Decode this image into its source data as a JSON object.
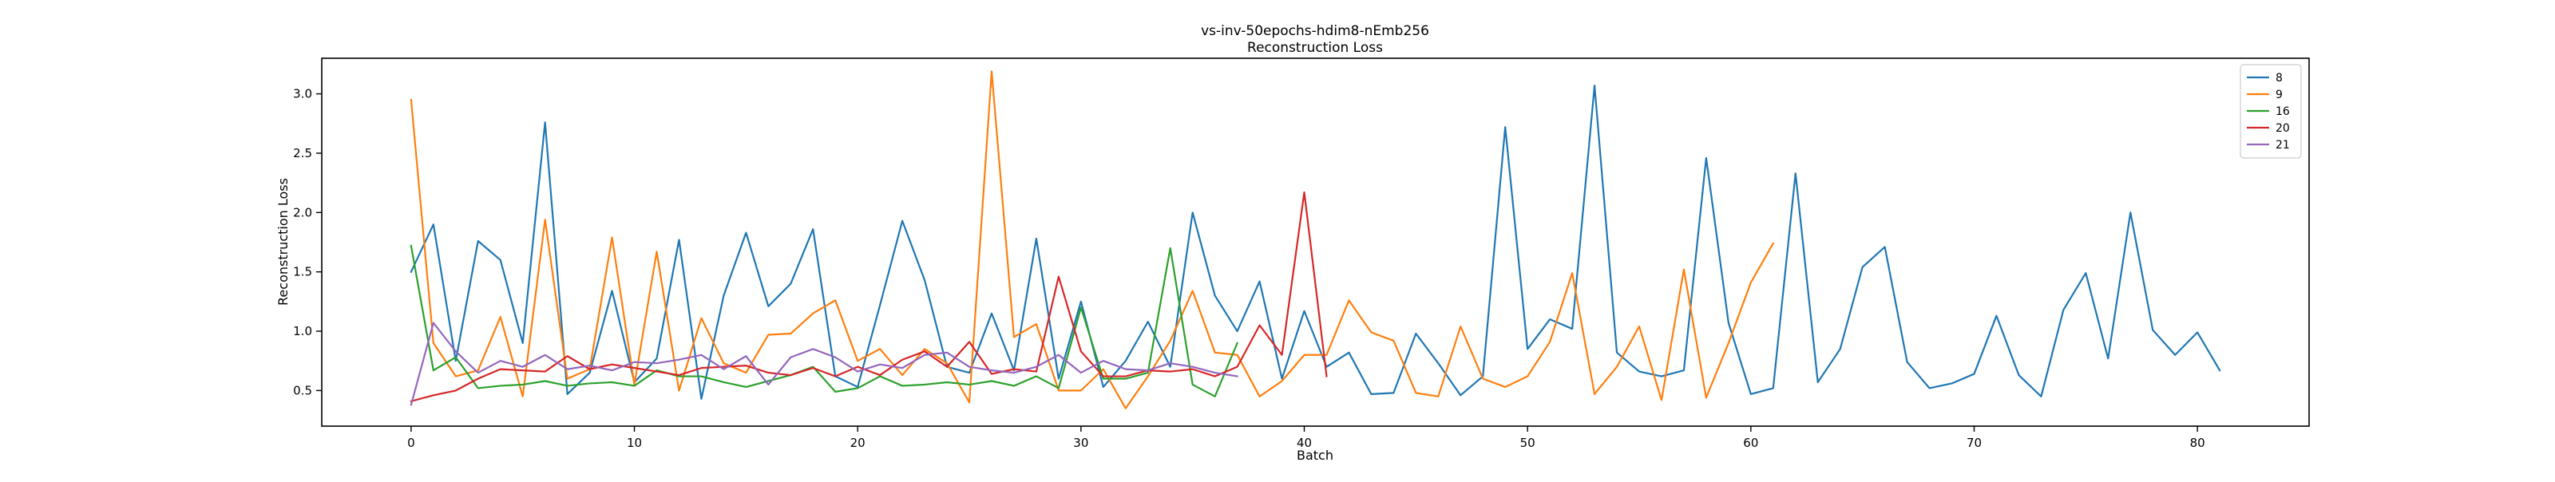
{
  "chart_data": {
    "type": "line",
    "title": "vs-inv-50epochs-hdim8-nEmb256",
    "subtitle": "Reconstruction Loss",
    "xlabel": "Batch",
    "ylabel": "Reconstruction Loss",
    "xlim": [
      -4,
      85
    ],
    "ylim": [
      0.2,
      3.3
    ],
    "xticks": [
      0,
      10,
      20,
      30,
      40,
      50,
      60,
      70,
      80
    ],
    "yticks": [
      0.5,
      1.0,
      1.5,
      2.0,
      2.5,
      3.0
    ],
    "ytick_labels": [
      "0.5",
      "1.0",
      "1.5",
      "2.0",
      "2.5",
      "3.0"
    ],
    "grid": false,
    "legend_position": "top-right",
    "series": [
      {
        "name": "8",
        "color": "#1f77b4",
        "x": [
          0,
          1,
          2,
          3,
          4,
          5,
          6,
          7,
          8,
          9,
          10,
          11,
          12,
          13,
          14,
          15,
          16,
          17,
          18,
          19,
          20,
          21,
          22,
          23,
          24,
          25,
          26,
          27,
          28,
          29,
          30,
          31,
          32,
          33,
          34,
          35,
          36,
          37,
          38,
          39,
          40,
          41,
          42,
          43,
          44,
          45,
          46,
          47,
          48,
          49,
          50,
          51,
          52,
          53,
          54,
          55,
          56,
          57,
          58,
          59,
          60,
          61,
          62,
          63,
          64,
          65,
          66,
          67,
          68,
          69,
          70,
          71,
          72,
          73,
          74,
          75,
          76,
          77,
          78,
          79,
          80,
          81
        ],
        "values": [
          1.5,
          1.9,
          0.75,
          1.76,
          1.6,
          0.9,
          2.76,
          0.47,
          0.65,
          1.34,
          0.57,
          0.77,
          1.77,
          0.43,
          1.3,
          1.83,
          1.21,
          1.4,
          1.86,
          0.62,
          0.53,
          1.22,
          1.93,
          1.43,
          0.7,
          0.65,
          1.15,
          0.67,
          1.78,
          0.6,
          1.25,
          0.53,
          0.75,
          1.08,
          0.7,
          2.0,
          1.3,
          1.0,
          1.42,
          0.6,
          1.17,
          0.7,
          0.82,
          0.47,
          0.48,
          0.98,
          0.73,
          0.46,
          0.62,
          2.72,
          0.85,
          1.1,
          1.02,
          3.07,
          0.82,
          0.66,
          0.62,
          0.67,
          2.46,
          1.07,
          0.47,
          0.52,
          2.33,
          0.57,
          0.85,
          1.54,
          1.71,
          0.74,
          0.52,
          0.56,
          0.64,
          1.13,
          0.63,
          0.45,
          1.18,
          1.49,
          0.77,
          2.0,
          1.01,
          0.8,
          0.99,
          0.67
        ]
      },
      {
        "name": "9",
        "color": "#ff7f0e",
        "x": [
          0,
          1,
          2,
          3,
          4,
          5,
          6,
          7,
          8,
          9,
          10,
          11,
          12,
          13,
          14,
          15,
          16,
          17,
          18,
          19,
          20,
          21,
          22,
          23,
          24,
          25,
          26,
          27,
          28,
          29,
          30,
          31,
          32,
          33,
          34,
          35,
          36,
          37,
          38,
          39,
          40,
          41,
          42,
          43,
          44,
          45,
          46,
          47,
          48,
          49,
          50,
          51,
          52,
          53,
          54,
          55,
          56,
          57,
          58,
          59,
          60,
          61
        ],
        "values": [
          2.95,
          0.9,
          0.62,
          0.67,
          1.12,
          0.45,
          1.94,
          0.6,
          0.68,
          1.79,
          0.55,
          1.67,
          0.5,
          1.11,
          0.73,
          0.65,
          0.97,
          0.98,
          1.15,
          1.26,
          0.75,
          0.85,
          0.63,
          0.85,
          0.73,
          0.4,
          3.19,
          0.95,
          1.06,
          0.5,
          0.5,
          0.68,
          0.35,
          0.62,
          0.92,
          1.34,
          0.82,
          0.8,
          0.45,
          0.58,
          0.8,
          0.8,
          1.26,
          0.99,
          0.92,
          0.48,
          0.45,
          1.04,
          0.6,
          0.53,
          0.62,
          0.91,
          1.49,
          0.47,
          0.7,
          1.04,
          0.42,
          1.52,
          0.44,
          0.9,
          1.41,
          1.74
        ]
      },
      {
        "name": "16",
        "color": "#2ca02c",
        "x": [
          0,
          1,
          2,
          3,
          4,
          5,
          6,
          7,
          8,
          9,
          10,
          11,
          12,
          13,
          14,
          15,
          16,
          17,
          18,
          19,
          20,
          21,
          22,
          23,
          24,
          25,
          26,
          27,
          28,
          29,
          30,
          31,
          32,
          33,
          34,
          35,
          36,
          37
        ],
        "values": [
          1.72,
          0.67,
          0.78,
          0.52,
          0.54,
          0.55,
          0.58,
          0.54,
          0.56,
          0.57,
          0.54,
          0.67,
          0.62,
          0.62,
          0.57,
          0.53,
          0.58,
          0.63,
          0.7,
          0.49,
          0.52,
          0.62,
          0.54,
          0.55,
          0.57,
          0.55,
          0.58,
          0.54,
          0.62,
          0.52,
          1.2,
          0.6,
          0.6,
          0.65,
          1.7,
          0.55,
          0.45,
          0.9
        ]
      },
      {
        "name": "20",
        "color": "#d62728",
        "x": [
          0,
          1,
          2,
          3,
          4,
          5,
          6,
          7,
          8,
          9,
          10,
          11,
          12,
          13,
          14,
          15,
          16,
          17,
          18,
          19,
          20,
          21,
          22,
          23,
          24,
          25,
          26,
          27,
          28,
          29,
          30,
          31,
          32,
          33,
          34,
          35,
          36,
          37,
          38,
          39,
          40,
          41
        ],
        "values": [
          0.41,
          0.46,
          0.5,
          0.6,
          0.68,
          0.67,
          0.66,
          0.79,
          0.68,
          0.72,
          0.69,
          0.66,
          0.63,
          0.69,
          0.7,
          0.71,
          0.65,
          0.63,
          0.69,
          0.62,
          0.7,
          0.63,
          0.76,
          0.83,
          0.7,
          0.91,
          0.64,
          0.68,
          0.66,
          1.46,
          0.83,
          0.62,
          0.62,
          0.67,
          0.66,
          0.68,
          0.62,
          0.7,
          1.05,
          0.8,
          2.17,
          0.62
        ]
      },
      {
        "name": "21",
        "color": "#9467bd",
        "x": [
          0,
          1,
          2,
          3,
          4,
          5,
          6,
          7,
          8,
          9,
          10,
          11,
          12,
          13,
          14,
          15,
          16,
          17,
          18,
          19,
          20,
          21,
          22,
          23,
          24,
          25,
          26,
          27,
          28,
          29,
          30,
          31,
          32,
          33,
          34,
          35,
          36,
          37
        ],
        "values": [
          0.38,
          1.07,
          0.83,
          0.65,
          0.75,
          0.7,
          0.8,
          0.68,
          0.71,
          0.67,
          0.74,
          0.73,
          0.76,
          0.8,
          0.68,
          0.79,
          0.55,
          0.78,
          0.85,
          0.78,
          0.66,
          0.72,
          0.69,
          0.8,
          0.82,
          0.7,
          0.67,
          0.65,
          0.7,
          0.8,
          0.65,
          0.75,
          0.68,
          0.67,
          0.73,
          0.7,
          0.65,
          0.62
        ]
      }
    ]
  }
}
